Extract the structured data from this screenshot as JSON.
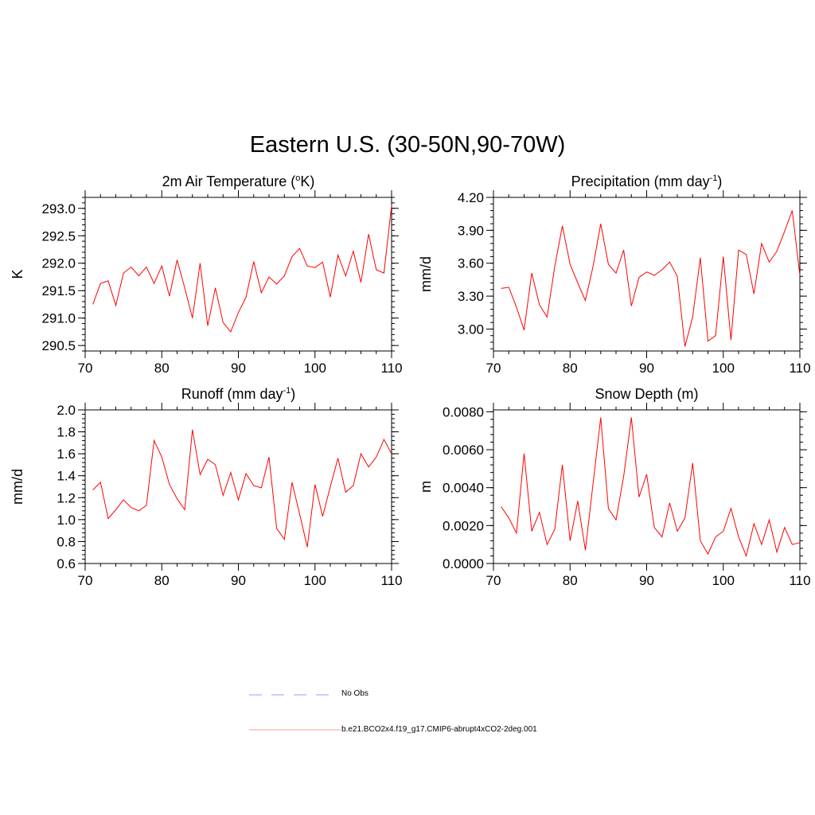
{
  "title": "Eastern U.S. (30-50N,90-70W)",
  "colors": {
    "model_line": "#ff0000",
    "obs_line": "#9999ff",
    "axis": "#000000"
  },
  "legend": {
    "entries": [
      {
        "label": "No Obs",
        "style": "dashed",
        "color": "#9999ff"
      },
      {
        "label": "b.e21.BCO2x4.f19_g17.CMIP6-abrupt4xCO2-2deg.001",
        "style": "solid",
        "color": "#ff9999"
      }
    ]
  },
  "chart_data": [
    {
      "id": "temp",
      "type": "line",
      "title": "2m Air Temperature (",
      "title_sup": "o",
      "title_after": "K)",
      "ylabel": "K",
      "xlabel": "",
      "xlim": [
        70,
        110
      ],
      "ylim": [
        290.4,
        293.2
      ],
      "xticks": [
        70,
        80,
        90,
        100,
        110
      ],
      "yticks": [
        290.5,
        291.0,
        291.5,
        292.0,
        292.5,
        293.0
      ],
      "ytick_labels": [
        "290.5",
        "291.0",
        "291.5",
        "292.0",
        "292.5",
        "293.0"
      ],
      "x": [
        71,
        72,
        73,
        74,
        75,
        76,
        77,
        78,
        79,
        80,
        81,
        82,
        83,
        84,
        85,
        86,
        87,
        88,
        89,
        90,
        91,
        92,
        93,
        94,
        95,
        96,
        97,
        98,
        99,
        100,
        101,
        102,
        103,
        104,
        105,
        106,
        107,
        108,
        109,
        110
      ],
      "series": [
        {
          "name": "b.e21.BCO2x4.f19_g17.CMIP6-abrupt4xCO2-2deg.001",
          "values": [
            291.25,
            291.63,
            291.68,
            291.23,
            291.82,
            291.93,
            291.77,
            291.93,
            291.63,
            291.95,
            291.4,
            292.06,
            291.55,
            291.0,
            292.0,
            290.86,
            291.55,
            290.92,
            290.75,
            291.1,
            291.38,
            292.03,
            291.46,
            291.75,
            291.62,
            291.77,
            292.12,
            292.27,
            291.95,
            291.92,
            292.02,
            291.38,
            292.15,
            291.77,
            292.22,
            291.65,
            292.53,
            291.88,
            291.82,
            293.05
          ]
        }
      ]
    },
    {
      "id": "precip",
      "type": "line",
      "title": "Precipitation (mm day",
      "title_sup": "-1",
      "title_after": ")",
      "ylabel": "mm/d",
      "xlabel": "",
      "xlim": [
        70,
        110
      ],
      "ylim": [
        2.8,
        4.2
      ],
      "xticks": [
        70,
        80,
        90,
        100,
        110
      ],
      "yticks": [
        3.0,
        3.3,
        3.6,
        3.9,
        4.2
      ],
      "ytick_labels": [
        "3.00",
        "3.30",
        "3.60",
        "3.90",
        "4.20"
      ],
      "x": [
        71,
        72,
        73,
        74,
        75,
        76,
        77,
        78,
        79,
        80,
        81,
        82,
        83,
        84,
        85,
        86,
        87,
        88,
        89,
        90,
        91,
        92,
        93,
        94,
        95,
        96,
        97,
        98,
        99,
        100,
        101,
        102,
        103,
        104,
        105,
        106,
        107,
        108,
        109,
        110
      ],
      "series": [
        {
          "name": "b.e21.BCO2x4.f19_g17.CMIP6-abrupt4xCO2-2deg.001",
          "values": [
            3.37,
            3.38,
            3.2,
            2.99,
            3.51,
            3.22,
            3.11,
            3.57,
            3.94,
            3.59,
            3.42,
            3.26,
            3.57,
            3.96,
            3.59,
            3.51,
            3.72,
            3.21,
            3.47,
            3.52,
            3.49,
            3.54,
            3.61,
            3.48,
            2.84,
            3.11,
            3.65,
            2.89,
            2.94,
            3.66,
            2.9,
            3.72,
            3.68,
            3.32,
            3.78,
            3.61,
            3.71,
            3.89,
            4.08,
            3.49
          ]
        }
      ]
    },
    {
      "id": "runoff",
      "type": "line",
      "title": "Runoff (mm day",
      "title_sup": "-1",
      "title_after": ")",
      "ylabel": "mm/d",
      "xlabel": "",
      "xlim": [
        70,
        110
      ],
      "ylim": [
        0.6,
        2.0
      ],
      "xticks": [
        70,
        80,
        90,
        100,
        110
      ],
      "yticks": [
        0.6,
        0.8,
        1.0,
        1.2,
        1.4,
        1.6,
        1.8,
        2.0
      ],
      "ytick_labels": [
        "0.6",
        "0.8",
        "1.0",
        "1.2",
        "1.4",
        "1.6",
        "1.8",
        "2.0"
      ],
      "x": [
        71,
        72,
        73,
        74,
        75,
        76,
        77,
        78,
        79,
        80,
        81,
        82,
        83,
        84,
        85,
        86,
        87,
        88,
        89,
        90,
        91,
        92,
        93,
        94,
        95,
        96,
        97,
        98,
        99,
        100,
        101,
        102,
        103,
        104,
        105,
        106,
        107,
        108,
        109,
        110
      ],
      "series": [
        {
          "name": "b.e21.BCO2x4.f19_g17.CMIP6-abrupt4xCO2-2deg.001",
          "values": [
            1.27,
            1.34,
            1.01,
            1.09,
            1.18,
            1.11,
            1.08,
            1.13,
            1.72,
            1.57,
            1.32,
            1.19,
            1.09,
            1.82,
            1.41,
            1.55,
            1.5,
            1.22,
            1.43,
            1.18,
            1.42,
            1.31,
            1.29,
            1.57,
            0.92,
            0.82,
            1.34,
            1.05,
            0.75,
            1.32,
            1.03,
            1.3,
            1.56,
            1.25,
            1.31,
            1.6,
            1.48,
            1.57,
            1.73,
            1.6
          ]
        }
      ]
    },
    {
      "id": "snow",
      "type": "line",
      "title": "Snow Depth (m)",
      "title_sup": "",
      "title_after": "",
      "ylabel": "m",
      "xlabel": "",
      "xlim": [
        70,
        110
      ],
      "ylim": [
        0,
        0.0081
      ],
      "xticks": [
        70,
        80,
        90,
        100,
        110
      ],
      "yticks": [
        0,
        0.002,
        0.004,
        0.006,
        0.008
      ],
      "ytick_labels": [
        "0.0000",
        "0.0020",
        "0.0040",
        "0.0060",
        "0.0080"
      ],
      "x": [
        71,
        72,
        73,
        74,
        75,
        76,
        77,
        78,
        79,
        80,
        81,
        82,
        83,
        84,
        85,
        86,
        87,
        88,
        89,
        90,
        91,
        92,
        93,
        94,
        95,
        96,
        97,
        98,
        99,
        100,
        101,
        102,
        103,
        104,
        105,
        106,
        107,
        108,
        109,
        110
      ],
      "series": [
        {
          "name": "b.e21.BCO2x4.f19_g17.CMIP6-abrupt4xCO2-2deg.001",
          "values": [
            0.003,
            0.0024,
            0.0016,
            0.0058,
            0.0017,
            0.0027,
            0.001,
            0.0018,
            0.0052,
            0.0012,
            0.0033,
            0.0007,
            0.0042,
            0.0077,
            0.0029,
            0.0023,
            0.0046,
            0.0077,
            0.0035,
            0.0047,
            0.0019,
            0.0014,
            0.0032,
            0.0017,
            0.0024,
            0.0053,
            0.0012,
            0.0005,
            0.0014,
            0.0017,
            0.0029,
            0.0014,
            0.0004,
            0.0021,
            0.001,
            0.0023,
            0.0006,
            0.0019,
            0.001,
            0.0011
          ]
        }
      ]
    }
  ]
}
